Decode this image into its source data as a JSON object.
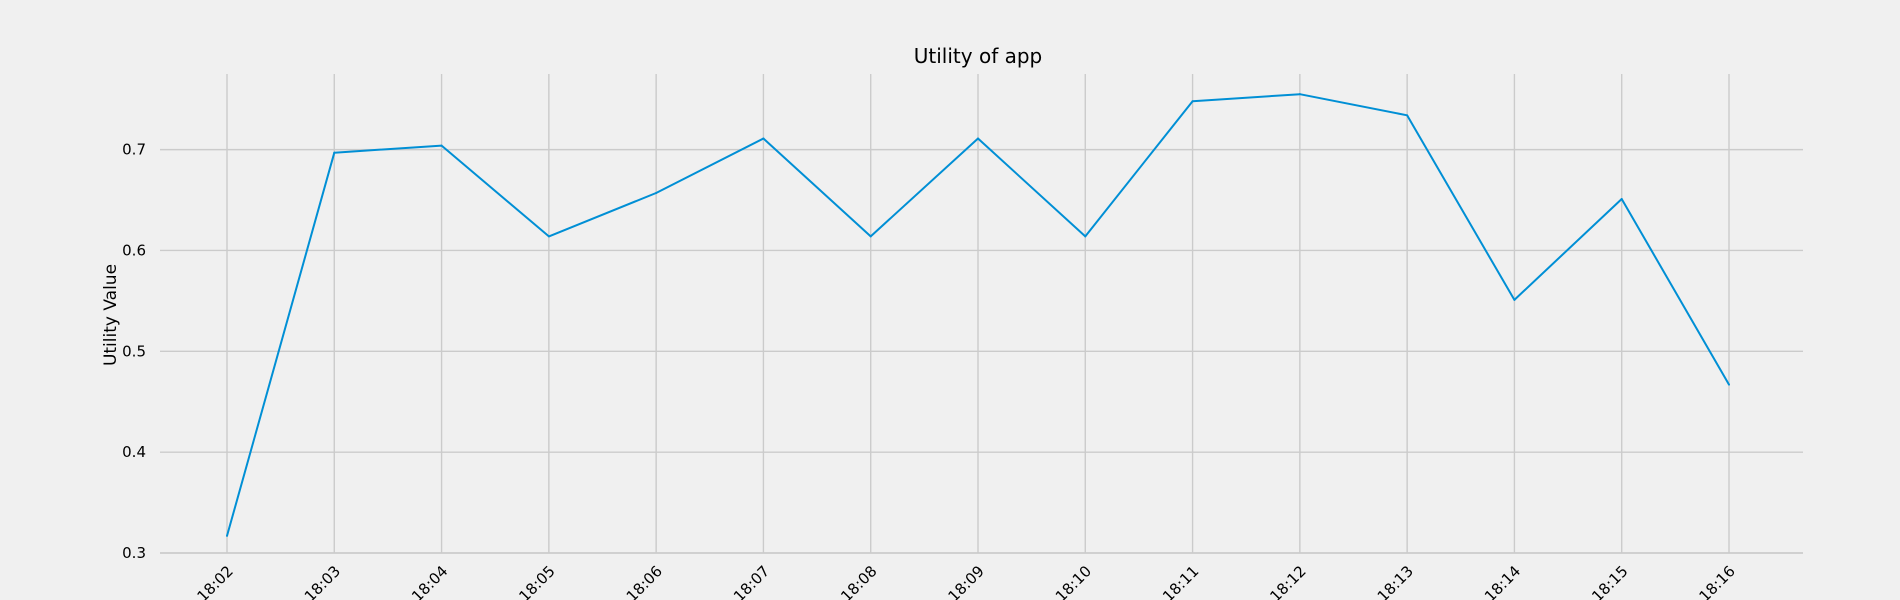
{
  "chart_data": {
    "type": "line",
    "title": "Utility of app",
    "xlabel": "",
    "ylabel": "Utility Value",
    "categories": [
      "18:02",
      "18:03",
      "18:04",
      "18:05",
      "18:06",
      "18:07",
      "18:08",
      "18:09",
      "18:10",
      "18:11",
      "18:12",
      "18:13",
      "18:14",
      "18:15",
      "18:16"
    ],
    "series": [
      {
        "values": [
          0.317,
          0.697,
          0.704,
          0.614,
          0.657,
          0.711,
          0.614,
          0.711,
          0.614,
          0.748,
          0.755,
          0.734,
          0.551,
          0.651,
          0.467
        ],
        "color": "#008fd5"
      }
    ],
    "ylim": [
      0.3,
      0.775
    ],
    "yticks": [
      "0.3",
      "0.4",
      "0.5",
      "0.6",
      "0.7"
    ],
    "grid": true,
    "legend": "none"
  }
}
